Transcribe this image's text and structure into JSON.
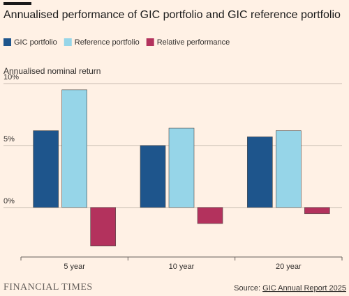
{
  "chart_data": {
    "type": "bar",
    "title": "Annualised performance of GIC portfolio and GIC reference portfolio",
    "y_label": "Annualised nominal return",
    "categories": [
      "5 year",
      "10 year",
      "20 year"
    ],
    "series": [
      {
        "name": "GIC portfolio",
        "color": "#1e558c",
        "values": [
          6.2,
          5.0,
          5.7
        ]
      },
      {
        "name": "Reference portfolio",
        "color": "#96d5e8",
        "values": [
          9.5,
          6.4,
          6.2
        ]
      },
      {
        "name": "Relative performance",
        "color": "#b3325d",
        "values": [
          -3.1,
          -1.3,
          -0.5
        ]
      }
    ],
    "ylim": [
      -4,
      10
    ],
    "yticks": [
      {
        "value": 10,
        "label": "10%"
      },
      {
        "value": 5,
        "label": "5%"
      },
      {
        "value": 0,
        "label": "0%"
      }
    ],
    "grid": true,
    "legend": "top",
    "source_label": "Source:",
    "source": "GIC Annual Report 2025",
    "brand": "FINANCIAL TIMES"
  }
}
